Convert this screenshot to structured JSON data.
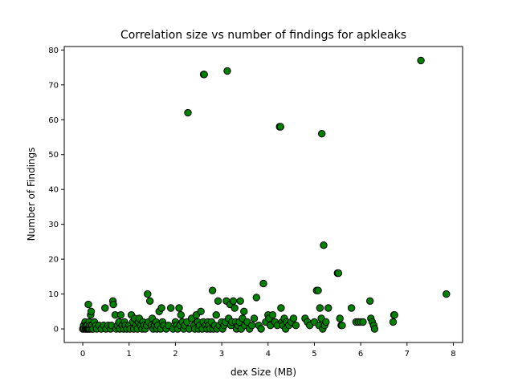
{
  "chart_data": {
    "type": "scatter",
    "title": "Correlation size vs number of findings for apkleaks",
    "xlabel": "dex Size (MB)",
    "ylabel": "Number of Findings",
    "xlim": [
      -0.4,
      8.2
    ],
    "ylim": [
      -3.9,
      81
    ],
    "xticks": [
      0,
      1,
      2,
      3,
      4,
      5,
      6,
      7,
      8
    ],
    "yticks": [
      0,
      10,
      20,
      30,
      40,
      50,
      60,
      70,
      80
    ],
    "grid": false,
    "marker_color": "#008000",
    "marker_edge_color": "#000000",
    "points": [
      [
        0.0,
        0
      ],
      [
        0.02,
        1
      ],
      [
        0.03,
        0
      ],
      [
        0.05,
        2
      ],
      [
        0.06,
        0
      ],
      [
        0.07,
        1
      ],
      [
        0.08,
        0
      ],
      [
        0.09,
        0
      ],
      [
        0.1,
        1
      ],
      [
        0.11,
        0
      ],
      [
        0.12,
        7
      ],
      [
        0.13,
        0
      ],
      [
        0.14,
        2
      ],
      [
        0.15,
        0
      ],
      [
        0.16,
        1
      ],
      [
        0.17,
        4
      ],
      [
        0.18,
        5
      ],
      [
        0.19,
        0
      ],
      [
        0.2,
        1
      ],
      [
        0.22,
        0
      ],
      [
        0.25,
        2
      ],
      [
        0.28,
        1
      ],
      [
        0.3,
        0
      ],
      [
        0.35,
        1
      ],
      [
        0.4,
        0
      ],
      [
        0.45,
        1
      ],
      [
        0.48,
        6
      ],
      [
        0.5,
        0
      ],
      [
        0.55,
        1
      ],
      [
        0.6,
        0
      ],
      [
        0.62,
        1
      ],
      [
        0.65,
        8
      ],
      [
        0.66,
        7
      ],
      [
        0.7,
        4
      ],
      [
        0.72,
        0
      ],
      [
        0.75,
        1
      ],
      [
        0.78,
        2
      ],
      [
        0.8,
        0
      ],
      [
        0.82,
        4
      ],
      [
        0.85,
        1
      ],
      [
        0.88,
        0
      ],
      [
        0.9,
        2
      ],
      [
        0.92,
        1
      ],
      [
        0.95,
        0
      ],
      [
        1.0,
        1
      ],
      [
        1.02,
        0
      ],
      [
        1.05,
        4
      ],
      [
        1.08,
        2
      ],
      [
        1.1,
        0
      ],
      [
        1.12,
        3
      ],
      [
        1.15,
        1
      ],
      [
        1.18,
        0
      ],
      [
        1.2,
        2
      ],
      [
        1.22,
        3
      ],
      [
        1.25,
        1
      ],
      [
        1.28,
        0
      ],
      [
        1.3,
        2
      ],
      [
        1.32,
        1
      ],
      [
        1.35,
        0
      ],
      [
        1.38,
        1
      ],
      [
        1.4,
        10
      ],
      [
        1.42,
        2
      ],
      [
        1.45,
        8
      ],
      [
        1.48,
        1
      ],
      [
        1.5,
        3
      ],
      [
        1.52,
        0
      ],
      [
        1.55,
        1
      ],
      [
        1.58,
        2
      ],
      [
        1.6,
        0
      ],
      [
        1.62,
        1
      ],
      [
        1.65,
        5
      ],
      [
        1.68,
        0
      ],
      [
        1.7,
        6
      ],
      [
        1.72,
        2
      ],
      [
        1.75,
        1
      ],
      [
        1.8,
        0
      ],
      [
        1.85,
        1
      ],
      [
        1.9,
        6
      ],
      [
        1.95,
        0
      ],
      [
        2.0,
        2
      ],
      [
        2.02,
        1
      ],
      [
        2.05,
        0
      ],
      [
        2.08,
        6
      ],
      [
        2.1,
        1
      ],
      [
        2.12,
        4
      ],
      [
        2.15,
        2
      ],
      [
        2.18,
        0
      ],
      [
        2.2,
        1
      ],
      [
        2.25,
        2
      ],
      [
        2.27,
        62
      ],
      [
        2.3,
        0
      ],
      [
        2.35,
        3
      ],
      [
        2.4,
        1
      ],
      [
        2.42,
        0
      ],
      [
        2.45,
        4
      ],
      [
        2.48,
        2
      ],
      [
        2.5,
        0
      ],
      [
        2.52,
        1
      ],
      [
        2.55,
        5
      ],
      [
        2.58,
        0
      ],
      [
        2.6,
        2
      ],
      [
        2.61,
        73
      ],
      [
        2.62,
        73
      ],
      [
        2.65,
        1
      ],
      [
        2.68,
        0
      ],
      [
        2.7,
        2
      ],
      [
        2.72,
        1
      ],
      [
        2.75,
        0
      ],
      [
        2.78,
        2
      ],
      [
        2.8,
        11
      ],
      [
        2.82,
        0
      ],
      [
        2.85,
        1
      ],
      [
        2.88,
        4
      ],
      [
        2.9,
        0
      ],
      [
        2.92,
        8
      ],
      [
        2.95,
        1
      ],
      [
        3.0,
        2
      ],
      [
        3.02,
        0
      ],
      [
        3.05,
        1
      ],
      [
        3.08,
        2
      ],
      [
        3.1,
        8
      ],
      [
        3.12,
        74
      ],
      [
        3.15,
        3
      ],
      [
        3.18,
        7
      ],
      [
        3.2,
        1
      ],
      [
        3.22,
        2
      ],
      [
        3.25,
        8
      ],
      [
        3.28,
        6
      ],
      [
        3.3,
        2
      ],
      [
        3.32,
        0
      ],
      [
        3.35,
        1
      ],
      [
        3.38,
        2
      ],
      [
        3.4,
        8
      ],
      [
        3.42,
        0
      ],
      [
        3.45,
        3
      ],
      [
        3.48,
        5
      ],
      [
        3.5,
        1
      ],
      [
        3.55,
        2
      ],
      [
        3.6,
        0
      ],
      [
        3.65,
        1
      ],
      [
        3.7,
        3
      ],
      [
        3.75,
        9
      ],
      [
        3.8,
        1
      ],
      [
        3.85,
        0
      ],
      [
        3.9,
        13
      ],
      [
        3.95,
        2
      ],
      [
        4.0,
        4
      ],
      [
        4.02,
        3
      ],
      [
        4.05,
        1
      ],
      [
        4.1,
        4
      ],
      [
        4.15,
        2
      ],
      [
        4.2,
        1
      ],
      [
        4.25,
        58
      ],
      [
        4.27,
        58
      ],
      [
        4.28,
        6
      ],
      [
        4.3,
        2
      ],
      [
        4.32,
        1
      ],
      [
        4.35,
        3
      ],
      [
        4.38,
        0
      ],
      [
        4.4,
        2
      ],
      [
        4.45,
        1
      ],
      [
        4.5,
        2
      ],
      [
        4.55,
        3
      ],
      [
        4.6,
        1
      ],
      [
        4.8,
        3
      ],
      [
        4.85,
        2
      ],
      [
        4.9,
        1
      ],
      [
        5.0,
        2
      ],
      [
        5.05,
        11
      ],
      [
        5.08,
        11
      ],
      [
        5.1,
        1
      ],
      [
        5.12,
        6
      ],
      [
        5.15,
        3
      ],
      [
        5.16,
        56
      ],
      [
        5.18,
        0
      ],
      [
        5.2,
        24
      ],
      [
        5.22,
        1
      ],
      [
        5.25,
        2
      ],
      [
        5.3,
        6
      ],
      [
        5.5,
        16
      ],
      [
        5.52,
        16
      ],
      [
        5.55,
        3
      ],
      [
        5.58,
        1
      ],
      [
        5.6,
        1
      ],
      [
        5.8,
        6
      ],
      [
        5.9,
        2
      ],
      [
        5.95,
        2
      ],
      [
        6.0,
        2
      ],
      [
        6.05,
        2
      ],
      [
        6.2,
        8
      ],
      [
        6.22,
        3
      ],
      [
        6.25,
        2
      ],
      [
        6.28,
        1
      ],
      [
        6.3,
        0
      ],
      [
        6.7,
        2
      ],
      [
        6.72,
        4
      ],
      [
        6.73,
        4
      ],
      [
        7.3,
        77
      ],
      [
        7.85,
        10
      ]
    ]
  }
}
